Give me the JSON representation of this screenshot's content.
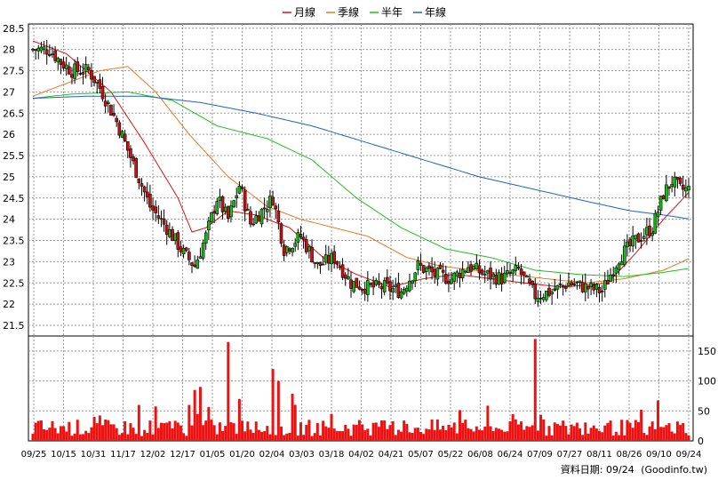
{
  "chart_data": {
    "type": "candlestick",
    "legend": [
      {
        "name": "月線",
        "color": "#e01010"
      },
      {
        "name": "季線",
        "color": "#e87a20"
      },
      {
        "name": "半年",
        "color": "#20c020"
      },
      {
        "name": "年線",
        "color": "#2060d0"
      }
    ],
    "legend_position": "top-center",
    "grid": true,
    "price_axis": {
      "ticks": [
        "28.5",
        "28",
        "27.5",
        "27",
        "26.5",
        "26",
        "25.5",
        "25",
        "24.5",
        "24",
        "23.5",
        "23",
        "22.5",
        "22",
        "21.5"
      ],
      "ylim": [
        21.25,
        28.6
      ]
    },
    "volume_axis": {
      "ticks": [
        "150",
        "100",
        "50",
        "0"
      ],
      "ylim": [
        0,
        175
      ]
    },
    "x_ticks": [
      "09/25",
      "10/15",
      "10/31",
      "11/17",
      "12/02",
      "12/17",
      "01/05",
      "01/20",
      "02/04",
      "03/03",
      "03/18",
      "04/02",
      "04/21",
      "05/07",
      "05/22",
      "06/08",
      "06/24",
      "07/09",
      "07/27",
      "08/11",
      "08/26",
      "09/10",
      "09/24"
    ],
    "price_waypoints": [
      [
        0,
        28.0
      ],
      [
        6,
        28.0
      ],
      [
        10,
        27.7
      ],
      [
        14,
        27.5
      ],
      [
        20,
        27.5
      ],
      [
        24,
        27.1
      ],
      [
        30,
        26.3
      ],
      [
        36,
        25.3
      ],
      [
        42,
        24.3
      ],
      [
        48,
        23.8
      ],
      [
        54,
        23.2
      ],
      [
        58,
        22.9
      ],
      [
        62,
        23.6
      ],
      [
        66,
        24.5
      ],
      [
        70,
        24.0
      ],
      [
        74,
        24.8
      ],
      [
        78,
        23.9
      ],
      [
        82,
        24.2
      ],
      [
        86,
        24.5
      ],
      [
        90,
        23.3
      ],
      [
        96,
        23.6
      ],
      [
        102,
        22.9
      ],
      [
        108,
        23.1
      ],
      [
        114,
        22.5
      ],
      [
        120,
        22.4
      ],
      [
        126,
        22.4
      ],
      [
        132,
        22.3
      ],
      [
        138,
        22.9
      ],
      [
        144,
        22.7
      ],
      [
        150,
        22.6
      ],
      [
        156,
        22.9
      ],
      [
        162,
        22.7
      ],
      [
        168,
        22.6
      ],
      [
        174,
        22.8
      ],
      [
        180,
        22.2
      ],
      [
        186,
        22.3
      ],
      [
        192,
        22.5
      ],
      [
        198,
        22.4
      ],
      [
        204,
        22.3
      ],
      [
        210,
        23.1
      ],
      [
        216,
        23.5
      ],
      [
        222,
        23.8
      ],
      [
        226,
        24.6
      ],
      [
        229,
        24.9
      ],
      [
        232,
        24.7
      ],
      [
        236,
        24.7
      ]
    ],
    "ma_month": [
      [
        0,
        28.2
      ],
      [
        12,
        27.9
      ],
      [
        28,
        27.0
      ],
      [
        40,
        25.8
      ],
      [
        52,
        24.5
      ],
      [
        57,
        23.7
      ],
      [
        62,
        23.8
      ],
      [
        70,
        24.2
      ],
      [
        80,
        24.1
      ],
      [
        92,
        23.8
      ],
      [
        104,
        23.1
      ],
      [
        116,
        22.7
      ],
      [
        128,
        22.4
      ],
      [
        140,
        22.6
      ],
      [
        152,
        22.7
      ],
      [
        164,
        22.6
      ],
      [
        176,
        22.5
      ],
      [
        190,
        22.4
      ],
      [
        206,
        22.5
      ],
      [
        216,
        23.2
      ],
      [
        226,
        24.0
      ],
      [
        236,
        24.7
      ]
    ],
    "ma_quarter": [
      [
        0,
        26.9
      ],
      [
        12,
        27.2
      ],
      [
        24,
        27.5
      ],
      [
        34,
        27.6
      ],
      [
        44,
        27.0
      ],
      [
        56,
        26.0
      ],
      [
        70,
        25.0
      ],
      [
        84,
        24.3
      ],
      [
        96,
        24.0
      ],
      [
        108,
        23.8
      ],
      [
        120,
        23.6
      ],
      [
        134,
        23.1
      ],
      [
        146,
        22.9
      ],
      [
        158,
        22.8
      ],
      [
        170,
        22.7
      ],
      [
        184,
        22.6
      ],
      [
        198,
        22.5
      ],
      [
        212,
        22.6
      ],
      [
        226,
        22.8
      ],
      [
        236,
        23.1
      ]
    ],
    "ma_half": [
      [
        0,
        26.85
      ],
      [
        14,
        26.95
      ],
      [
        34,
        27.0
      ],
      [
        50,
        26.8
      ],
      [
        66,
        26.2
      ],
      [
        84,
        25.9
      ],
      [
        100,
        25.4
      ],
      [
        116,
        24.5
      ],
      [
        132,
        23.8
      ],
      [
        148,
        23.3
      ],
      [
        164,
        23.1
      ],
      [
        180,
        22.8
      ],
      [
        196,
        22.7
      ],
      [
        212,
        22.65
      ],
      [
        226,
        22.75
      ],
      [
        236,
        22.85
      ]
    ],
    "ma_year": [
      [
        0,
        26.85
      ],
      [
        20,
        26.9
      ],
      [
        40,
        26.9
      ],
      [
        60,
        26.75
      ],
      [
        80,
        26.5
      ],
      [
        100,
        26.2
      ],
      [
        120,
        25.8
      ],
      [
        140,
        25.4
      ],
      [
        160,
        25.0
      ],
      [
        180,
        24.7
      ],
      [
        200,
        24.4
      ],
      [
        214,
        24.2
      ],
      [
        226,
        24.1
      ],
      [
        236,
        24.0
      ]
    ],
    "volume_series_length": 236
  },
  "footer": {
    "label": "資料日期: 09/24",
    "source": "(Goodinfo.tw)"
  }
}
